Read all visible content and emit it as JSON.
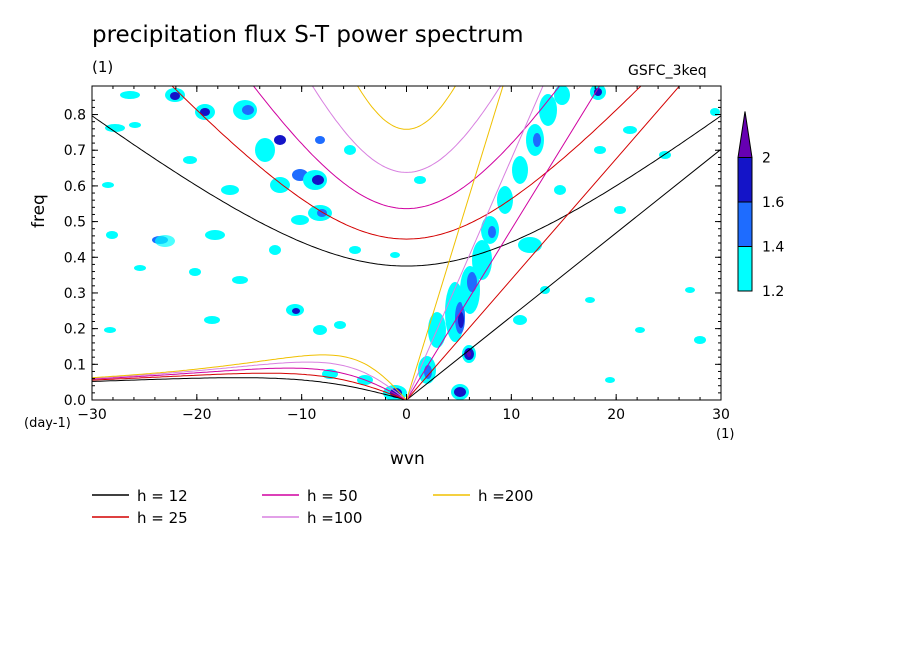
{
  "colors": {
    "cyan": "#00ffff",
    "blue": "#1e6cff",
    "navy": "#1414c8",
    "purple": "#6600b2",
    "h12": "#000000",
    "h25": "#d40000",
    "h50": "#d000a0",
    "h100": "#d880e0",
    "h200": "#f0c000"
  },
  "chart_data": {
    "type": "heatmap",
    "title": "precipitation flux S-T power spectrum",
    "title_units": "(1)",
    "run_label": "GSFC_3keq",
    "xlabel": "wvn",
    "ylabel": "freq",
    "x_unit": "(1)",
    "y_unit": "(day-1)",
    "xlim": [
      -30,
      30
    ],
    "ylim": [
      0,
      0.88
    ],
    "x_ticks": [
      "-30",
      "-20",
      "-10",
      "0",
      "10",
      "20",
      "30"
    ],
    "y_ticks": [
      "0.0",
      "0.1",
      "0.2",
      "0.3",
      "0.4",
      "0.5",
      "0.6",
      "0.7",
      "0.8"
    ],
    "colorbar": {
      "levels": [
        "1.2",
        "1.4",
        "1.6",
        "2"
      ],
      "colors": [
        "#00ffff",
        "#1e6cff",
        "#1414c8",
        "#6600b2"
      ]
    },
    "dispersion_curves": [
      {
        "label": "h = 12",
        "h": 12,
        "color": "#000000"
      },
      {
        "label": "h = 25",
        "h": 25,
        "color": "#d40000"
      },
      {
        "label": "h = 50",
        "h": 50,
        "color": "#d000a0"
      },
      {
        "label": "h =100",
        "h": 100,
        "color": "#d880e0"
      },
      {
        "label": "h =200",
        "h": 200,
        "color": "#f0c000"
      }
    ]
  }
}
